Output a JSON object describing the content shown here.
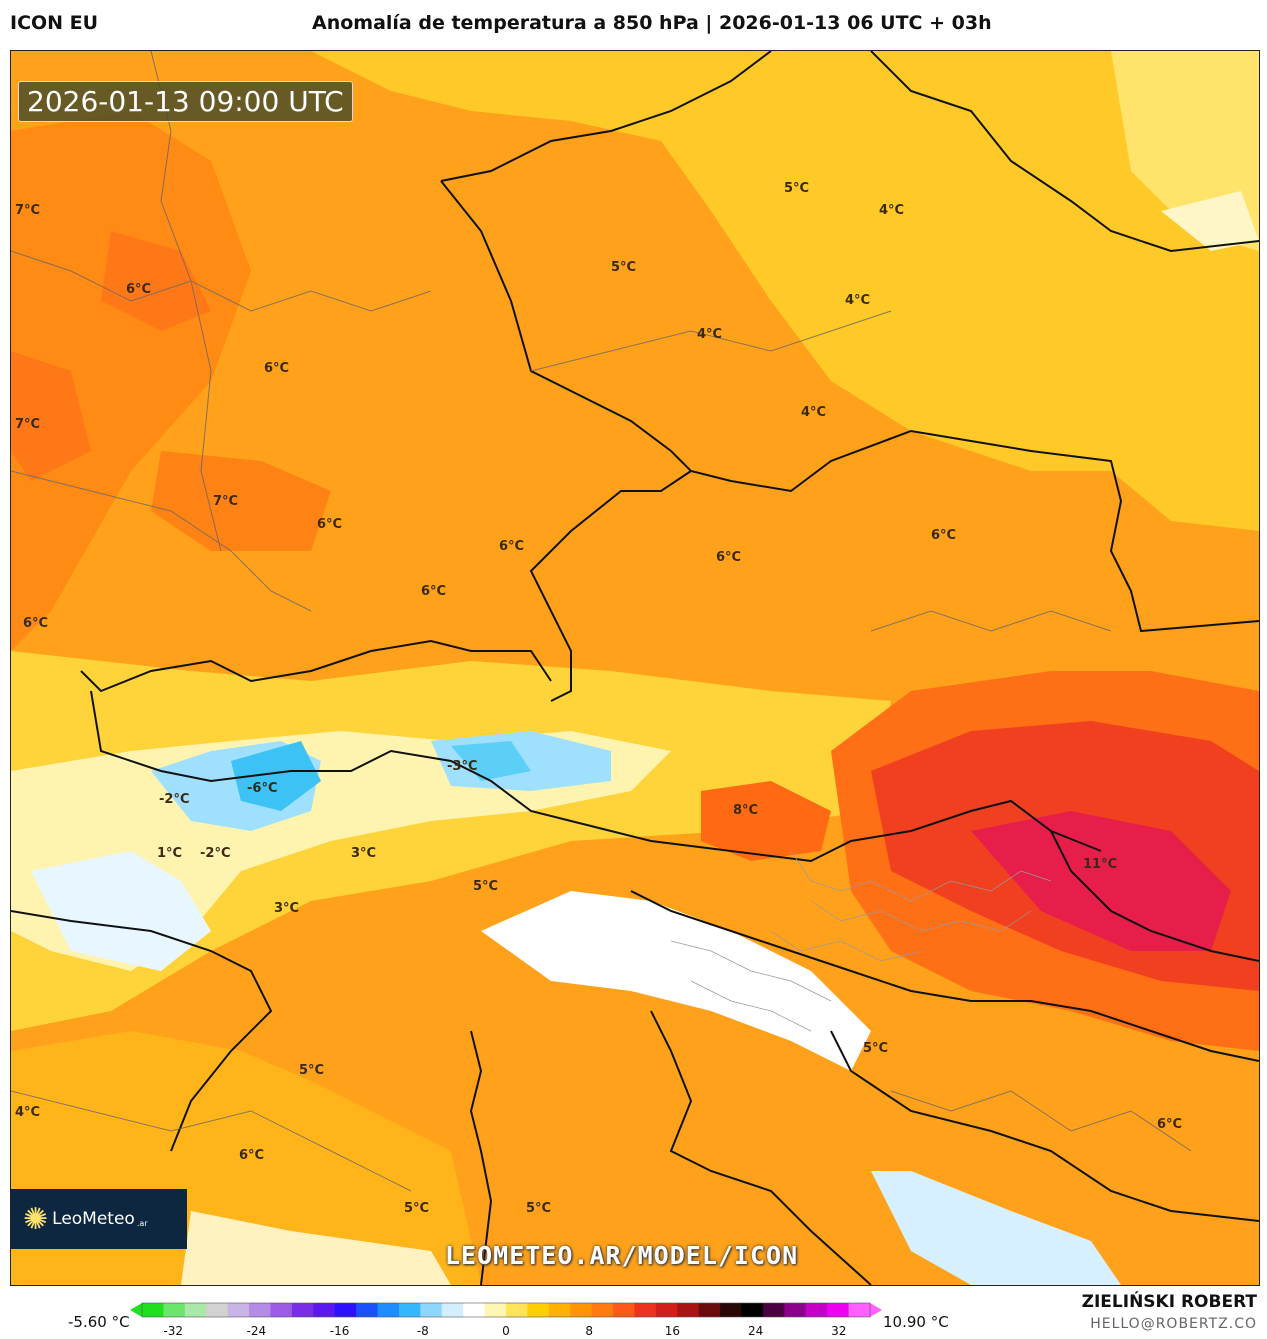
{
  "header": {
    "model": "ICON EU",
    "title": "Anomalía de temperatura a 850 hPa | 2026-01-13 06 UTC + 03h"
  },
  "map": {
    "valid_time": "2026-01-13 09:00 UTC",
    "watermark_url": "LEOMETEO.AR/MODEL/ICON",
    "logo": {
      "name": "LeoMeteo",
      "tld": ".ar"
    },
    "labels": [
      {
        "text": "7°C"
      },
      {
        "text": "6°C"
      },
      {
        "text": "6°C"
      },
      {
        "text": "7°C"
      },
      {
        "text": "7°C"
      },
      {
        "text": "6°C"
      },
      {
        "text": "6°C"
      },
      {
        "text": "6°C"
      },
      {
        "text": "6°C"
      },
      {
        "text": "5°C"
      },
      {
        "text": "4°C"
      },
      {
        "text": "5°C"
      },
      {
        "text": "4°C"
      },
      {
        "text": "4°C"
      },
      {
        "text": "4°C"
      },
      {
        "text": "6°C"
      },
      {
        "text": "6°C"
      },
      {
        "text": "-2°C"
      },
      {
        "text": "-6°C"
      },
      {
        "text": "-3°C"
      },
      {
        "text": "8°C"
      },
      {
        "text": "1°C"
      },
      {
        "text": "-2°C"
      },
      {
        "text": "3°C"
      },
      {
        "text": "5°C"
      },
      {
        "text": "3°C"
      },
      {
        "text": "11°C"
      },
      {
        "text": "5°C"
      },
      {
        "text": "5°C"
      },
      {
        "text": "4°C"
      },
      {
        "text": "6°C"
      },
      {
        "text": "6°C"
      },
      {
        "text": "5°C"
      },
      {
        "text": "5°C"
      }
    ]
  },
  "colorbar": {
    "min_label": "-5.60 °C",
    "max_label": "10.90 °C",
    "ticks": [
      {
        "value": -32,
        "label": "-32"
      },
      {
        "value": -24,
        "label": "-24"
      },
      {
        "value": -16,
        "label": "-16"
      },
      {
        "value": -8,
        "label": "-8"
      },
      {
        "value": 0,
        "label": "0"
      },
      {
        "value": 8,
        "label": "8"
      },
      {
        "value": 16,
        "label": "16"
      },
      {
        "value": 24,
        "label": "24"
      },
      {
        "value": 32,
        "label": "32"
      }
    ],
    "range": [
      -35,
      35
    ],
    "colors": [
      "#1fdf1f",
      "#6be56b",
      "#a8e8a8",
      "#d2d2d2",
      "#c8b4e6",
      "#b48be6",
      "#9b5ce6",
      "#7a2de6",
      "#5b18f0",
      "#2c10ff",
      "#1b50ff",
      "#1f8cff",
      "#35b7ff",
      "#8fd6ff",
      "#d3efff",
      "#ffffff",
      "#fff6b3",
      "#ffe35a",
      "#ffd000",
      "#ffb200",
      "#ff9500",
      "#ff7a10",
      "#ff5818",
      "#f03020",
      "#d41e1e",
      "#a81414",
      "#6b0c0c",
      "#2a0808",
      "#000000",
      "#4a0040",
      "#8a008a",
      "#c400c4",
      "#f000f0",
      "#ff60ff"
    ]
  },
  "footer": {
    "author": "ZIELIŃSKI ROBERT",
    "email": "HELLO@ROBERTZ.CO"
  }
}
